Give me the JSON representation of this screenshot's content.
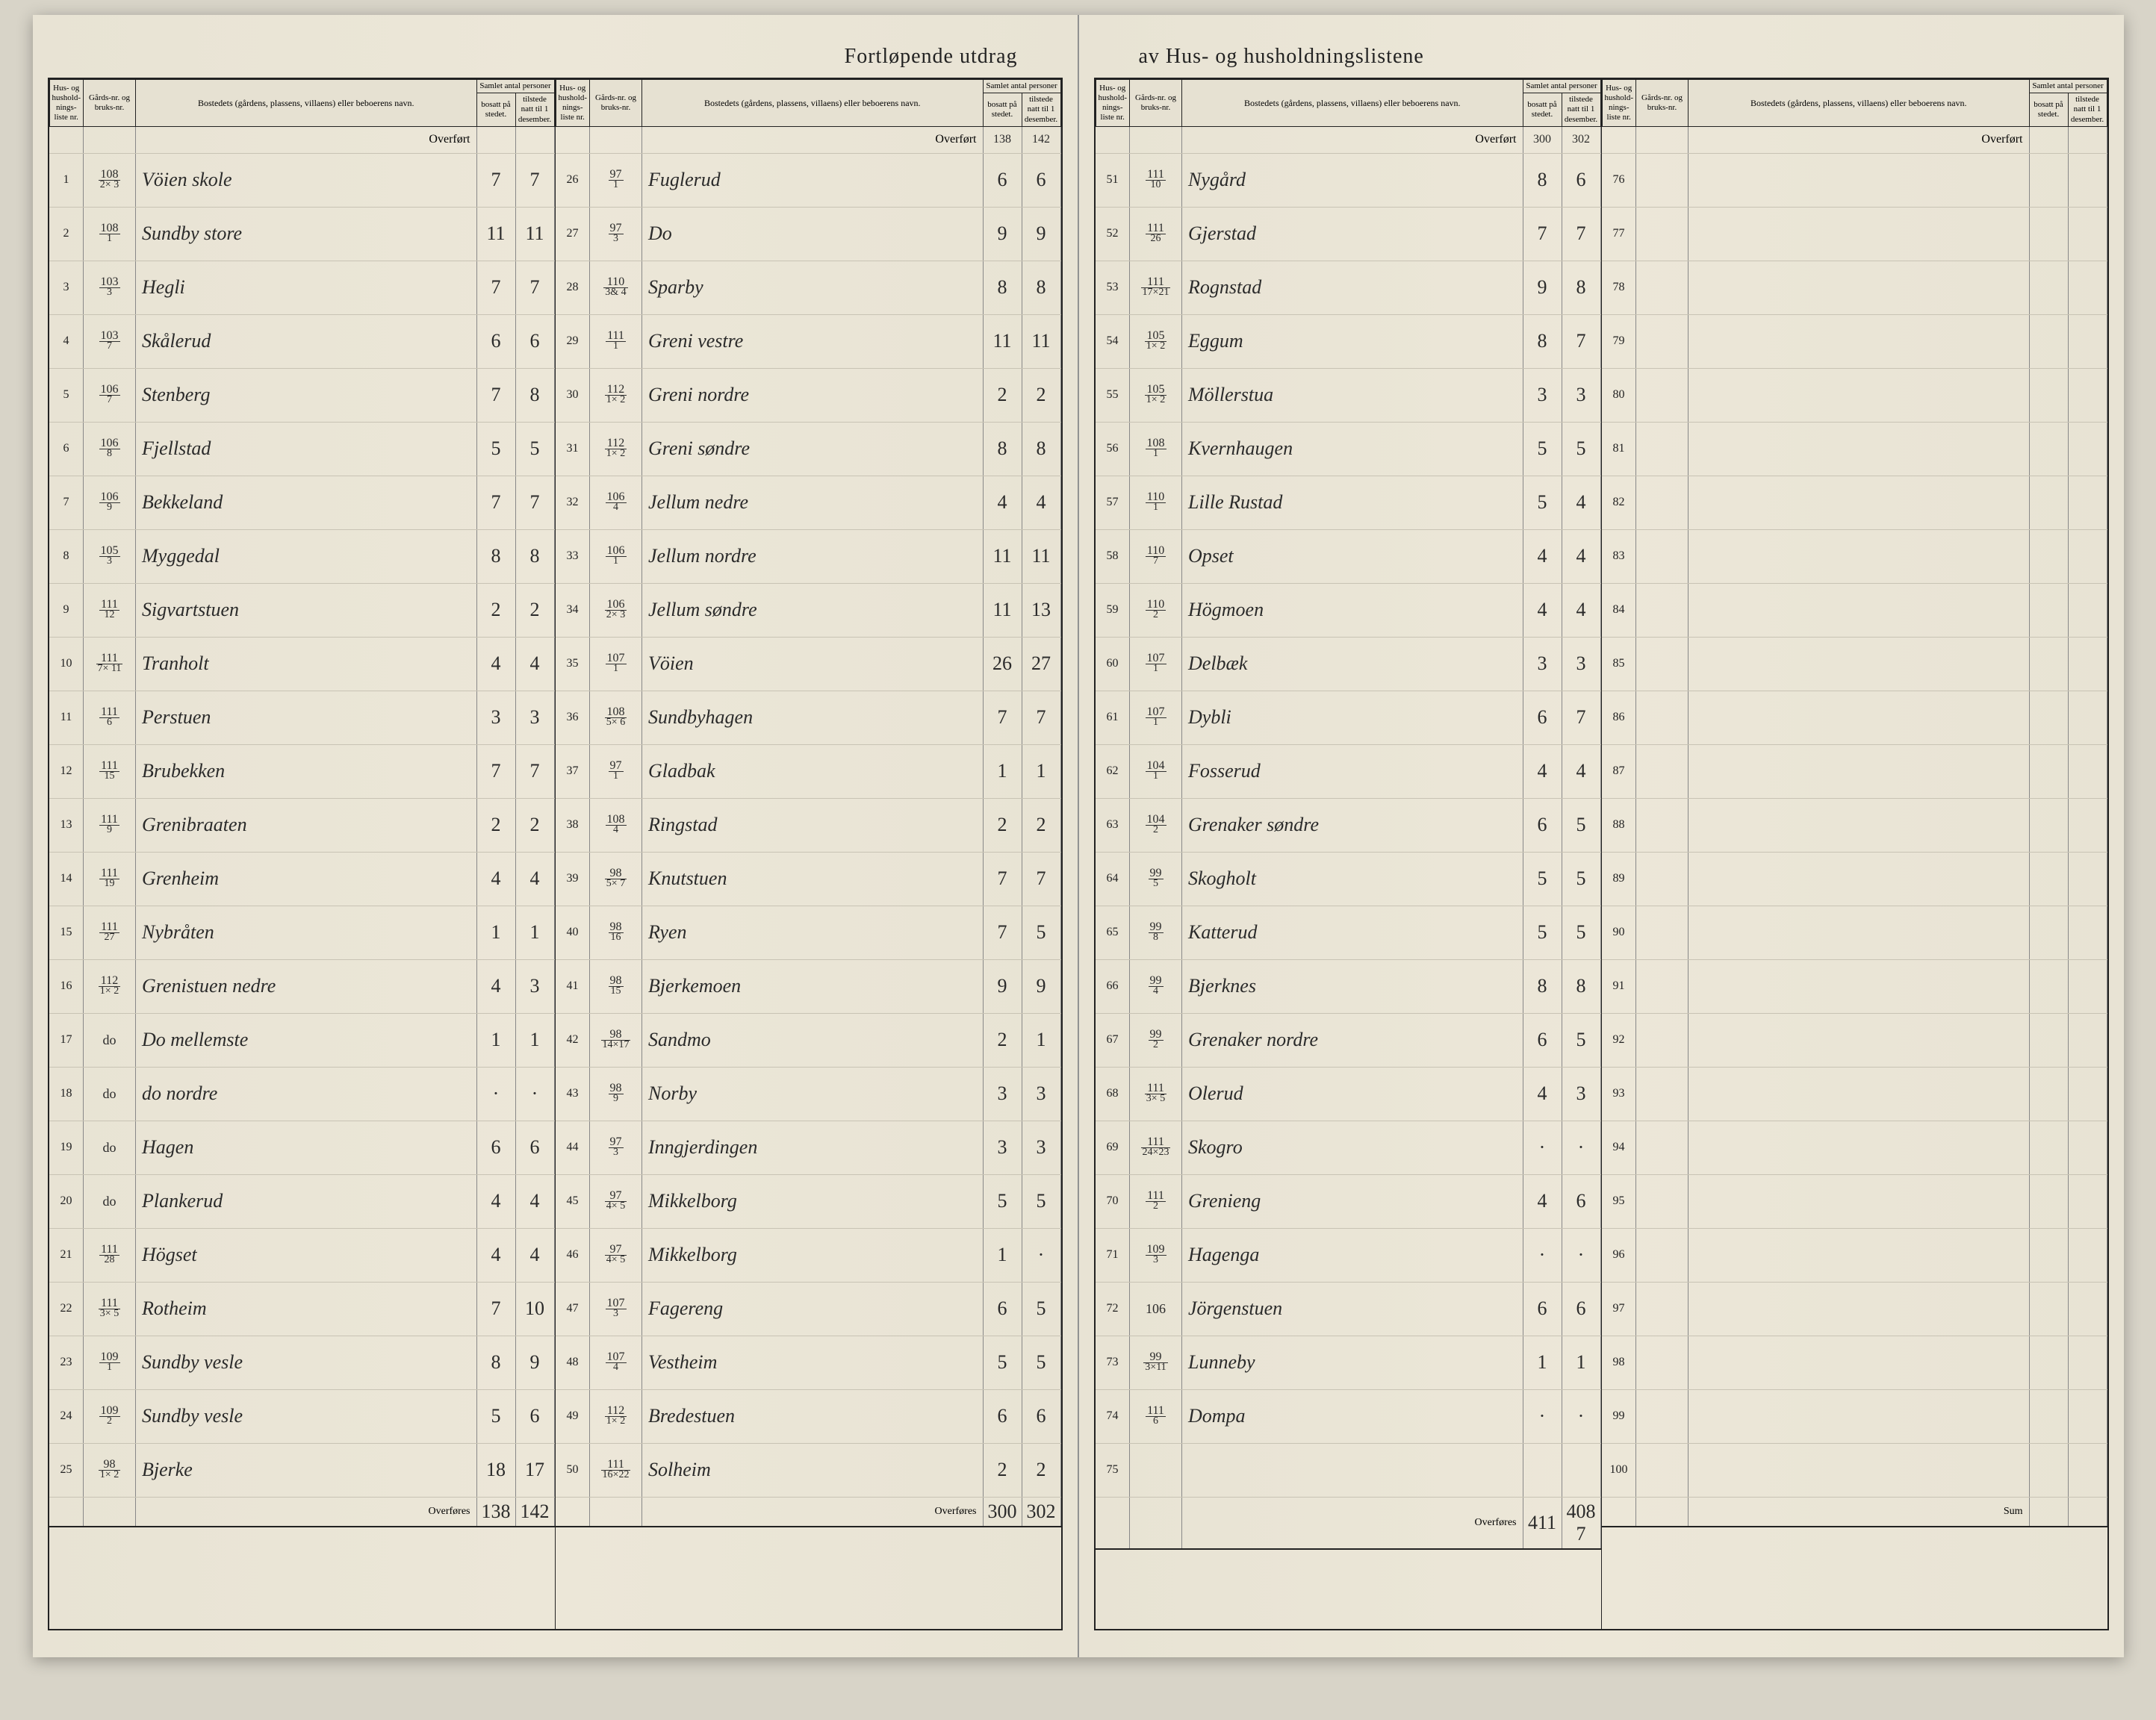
{
  "title_left": "Fortløpende utdrag",
  "title_right": "av Hus- og husholdningslistene",
  "headers": {
    "hus": "Hus- og hushold-nings-liste nr.",
    "gard": "Gårds-nr. og bruks-nr.",
    "bosted": "Bostedets (gårdens, plassens, villaens) eller beboerens navn.",
    "samlet": "Samlet antal personer",
    "bosatt": "bosatt på stedet.",
    "tilstede": "tilstede natt til 1 desember."
  },
  "overfort": "Overført",
  "overfores": "Overføres",
  "sum": "Sum",
  "columns": [
    {
      "overfort_b": "",
      "overfort_t": "",
      "rows": [
        {
          "i": "1",
          "g": "108",
          "gb": "2× 3",
          "n": "Vöien skole",
          "b": "7",
          "t": "7"
        },
        {
          "i": "2",
          "g": "108",
          "gb": "1",
          "n": "Sundby store",
          "b": "11",
          "t": "11"
        },
        {
          "i": "3",
          "g": "103",
          "gb": "3",
          "n": "Hegli",
          "b": "7",
          "t": "7"
        },
        {
          "i": "4",
          "g": "103",
          "gb": "7",
          "n": "Skålerud",
          "b": "6",
          "t": "6"
        },
        {
          "i": "5",
          "g": "106",
          "gb": "7",
          "n": "Stenberg",
          "b": "7",
          "t": "8"
        },
        {
          "i": "6",
          "g": "106",
          "gb": "8",
          "n": "Fjellstad",
          "b": "5",
          "t": "5"
        },
        {
          "i": "7",
          "g": "106",
          "gb": "9",
          "n": "Bekkeland",
          "b": "7",
          "t": "7"
        },
        {
          "i": "8",
          "g": "105",
          "gb": "3",
          "n": "Myggedal",
          "b": "8",
          "t": "8"
        },
        {
          "i": "9",
          "g": "111",
          "gb": "12",
          "n": "Sigvartstuen",
          "b": "2",
          "t": "2"
        },
        {
          "i": "10",
          "g": "111",
          "gb": "7× 11",
          "n": "Tranholt",
          "b": "4",
          "t": "4"
        },
        {
          "i": "11",
          "g": "111",
          "gb": "6",
          "n": "Perstuen",
          "b": "3",
          "t": "3"
        },
        {
          "i": "12",
          "g": "111",
          "gb": "15",
          "n": "Brubekken",
          "b": "7",
          "t": "7"
        },
        {
          "i": "13",
          "g": "111",
          "gb": "9",
          "n": "Grenibraaten",
          "b": "2",
          "t": "2"
        },
        {
          "i": "14",
          "g": "111",
          "gb": "19",
          "n": "Grenheim",
          "b": "4",
          "t": "4"
        },
        {
          "i": "15",
          "g": "111",
          "gb": "27",
          "n": "Nybråten",
          "b": "1",
          "t": "1"
        },
        {
          "i": "16",
          "g": "112",
          "gb": "1× 2",
          "n": "Grenistuen nedre",
          "b": "4",
          "t": "3"
        },
        {
          "i": "17",
          "g": "do",
          "gb": "",
          "n": "Do   mellemste",
          "b": "1",
          "t": "1"
        },
        {
          "i": "18",
          "g": "do",
          "gb": "",
          "n": "do   nordre",
          "b": "·",
          "t": "·"
        },
        {
          "i": "19",
          "g": "do",
          "gb": "",
          "n": "Hagen",
          "b": "6",
          "t": "6"
        },
        {
          "i": "20",
          "g": "do",
          "gb": "",
          "n": "Plankerud",
          "b": "4",
          "t": "4"
        },
        {
          "i": "21",
          "g": "111",
          "gb": "28",
          "n": "Högset",
          "b": "4",
          "t": "4"
        },
        {
          "i": "22",
          "g": "111",
          "gb": "3× 5",
          "n": "Rotheim",
          "b": "7",
          "t": "10"
        },
        {
          "i": "23",
          "g": "109",
          "gb": "1",
          "n": "Sundby vesle",
          "b": "8",
          "t": "9"
        },
        {
          "i": "24",
          "g": "109",
          "gb": "2",
          "n": "Sundby vesle",
          "b": "5",
          "t": "6"
        },
        {
          "i": "25",
          "g": "98",
          "gb": "1× 2",
          "n": "Bjerke",
          "b": "18",
          "t": "17"
        }
      ],
      "overfores_b": "138",
      "overfores_t": "142"
    },
    {
      "overfort_b": "138",
      "overfort_t": "142",
      "rows": [
        {
          "i": "26",
          "g": "97",
          "gb": "1",
          "n": "Fuglerud",
          "b": "6",
          "t": "6"
        },
        {
          "i": "27",
          "g": "97",
          "gb": "3",
          "n": "Do",
          "b": "9",
          "t": "9"
        },
        {
          "i": "28",
          "g": "110",
          "gb": "3& 4",
          "n": "Sparby",
          "b": "8",
          "t": "8"
        },
        {
          "i": "29",
          "g": "111",
          "gb": "1",
          "n": "Greni vestre",
          "b": "11",
          "t": "11"
        },
        {
          "i": "30",
          "g": "112",
          "gb": "1× 2",
          "n": "Greni nordre",
          "b": "2",
          "t": "2"
        },
        {
          "i": "31",
          "g": "112",
          "gb": "1× 2",
          "n": "Greni søndre",
          "b": "8",
          "t": "8"
        },
        {
          "i": "32",
          "g": "106",
          "gb": "4",
          "n": "Jellum nedre",
          "b": "4",
          "t": "4"
        },
        {
          "i": "33",
          "g": "106",
          "gb": "1",
          "n": "Jellum nordre",
          "b": "11",
          "t": "11"
        },
        {
          "i": "34",
          "g": "106",
          "gb": "2× 3",
          "n": "Jellum søndre",
          "b": "11",
          "t": "13"
        },
        {
          "i": "35",
          "g": "107",
          "gb": "1",
          "n": "Vöien",
          "b": "26",
          "t": "27"
        },
        {
          "i": "36",
          "g": "108",
          "gb": "5× 6",
          "n": "Sundbyhagen",
          "b": "7",
          "t": "7"
        },
        {
          "i": "37",
          "g": "97",
          "gb": "1",
          "n": "Gladbak",
          "b": "1",
          "t": "1"
        },
        {
          "i": "38",
          "g": "108",
          "gb": "4",
          "n": "Ringstad",
          "b": "2",
          "t": "2"
        },
        {
          "i": "39",
          "g": "98",
          "gb": "5× 7",
          "n": "Knutstuen",
          "b": "7",
          "t": "7"
        },
        {
          "i": "40",
          "g": "98",
          "gb": "16",
          "n": "Ryen",
          "b": "7",
          "t": "5"
        },
        {
          "i": "41",
          "g": "98",
          "gb": "15",
          "n": "Bjerkemoen",
          "b": "9",
          "t": "9"
        },
        {
          "i": "42",
          "g": "98",
          "gb": "14×17",
          "n": "Sandmo",
          "b": "2",
          "t": "1"
        },
        {
          "i": "43",
          "g": "98",
          "gb": "9",
          "n": "Norby",
          "b": "3",
          "t": "3"
        },
        {
          "i": "44",
          "g": "97",
          "gb": "3",
          "n": "Inngjerdingen",
          "b": "3",
          "t": "3"
        },
        {
          "i": "45",
          "g": "97",
          "gb": "4× 5",
          "n": "Mikkelborg",
          "b": "5",
          "t": "5"
        },
        {
          "i": "46",
          "g": "97",
          "gb": "4× 5",
          "n": "Mikkelborg",
          "b": "1",
          "t": "·"
        },
        {
          "i": "47",
          "g": "107",
          "gb": "3",
          "n": "Fagereng",
          "b": "6",
          "t": "5"
        },
        {
          "i": "48",
          "g": "107",
          "gb": "4",
          "n": "Vestheim",
          "b": "5",
          "t": "5"
        },
        {
          "i": "49",
          "g": "112",
          "gb": "1× 2",
          "n": "Bredestuen",
          "b": "6",
          "t": "6"
        },
        {
          "i": "50",
          "g": "111",
          "gb": "16×22",
          "n": "Solheim",
          "b": "2",
          "t": "2"
        }
      ],
      "overfores_b": "300",
      "overfores_t": "302"
    },
    {
      "overfort_b": "300",
      "overfort_t": "302",
      "rows": [
        {
          "i": "51",
          "g": "111",
          "gb": "10",
          "n": "Nygård",
          "b": "8",
          "t": "6"
        },
        {
          "i": "52",
          "g": "111",
          "gb": "26",
          "n": "Gjerstad",
          "b": "7",
          "t": "7"
        },
        {
          "i": "53",
          "g": "111",
          "gb": "17×21",
          "n": "Rognstad",
          "b": "9",
          "t": "8"
        },
        {
          "i": "54",
          "g": "105",
          "gb": "1× 2",
          "n": "Eggum",
          "b": "8",
          "t": "7"
        },
        {
          "i": "55",
          "g": "105",
          "gb": "1× 2",
          "n": "Möllerstua",
          "b": "3",
          "t": "3"
        },
        {
          "i": "56",
          "g": "108",
          "gb": "1",
          "n": "Kvernhaugen",
          "b": "5",
          "t": "5"
        },
        {
          "i": "57",
          "g": "110",
          "gb": "1",
          "n": "Lille Rustad",
          "b": "5",
          "t": "4"
        },
        {
          "i": "58",
          "g": "110",
          "gb": "7",
          "n": "Opset",
          "b": "4",
          "t": "4"
        },
        {
          "i": "59",
          "g": "110",
          "gb": "2",
          "n": "Högmoen",
          "b": "4",
          "t": "4"
        },
        {
          "i": "60",
          "g": "107",
          "gb": "1",
          "n": "Delbæk",
          "b": "3",
          "t": "3"
        },
        {
          "i": "61",
          "g": "107",
          "gb": "1",
          "n": "Dybli",
          "b": "6",
          "t": "7"
        },
        {
          "i": "62",
          "g": "104",
          "gb": "1",
          "n": "Fosserud",
          "b": "4",
          "t": "4"
        },
        {
          "i": "63",
          "g": "104",
          "gb": "2",
          "n": "Grenaker søndre",
          "b": "6",
          "t": "5"
        },
        {
          "i": "64",
          "g": "99",
          "gb": "5",
          "n": "Skogholt",
          "b": "5",
          "t": "5"
        },
        {
          "i": "65",
          "g": "99",
          "gb": "8",
          "n": "Katterud",
          "b": "5",
          "t": "5"
        },
        {
          "i": "66",
          "g": "99",
          "gb": "4",
          "n": "Bjerknes",
          "b": "8",
          "t": "8"
        },
        {
          "i": "67",
          "g": "99",
          "gb": "2",
          "n": "Grenaker nordre",
          "b": "6",
          "t": "5"
        },
        {
          "i": "68",
          "g": "111",
          "gb": "3× 5",
          "n": "Olerud",
          "b": "4",
          "t": "3"
        },
        {
          "i": "69",
          "g": "111",
          "gb": "24×23",
          "n": "Skogro",
          "b": "·",
          "t": "·"
        },
        {
          "i": "70",
          "g": "111",
          "gb": "2",
          "n": "Grenieng",
          "b": "4",
          "t": "6"
        },
        {
          "i": "71",
          "g": "109",
          "gb": "3",
          "n": "Hagenga",
          "b": "·",
          "t": "·"
        },
        {
          "i": "72",
          "g": "106",
          "gb": "",
          "n": "Jörgenstuen",
          "b": "6",
          "t": "6"
        },
        {
          "i": "73",
          "g": "99",
          "gb": "3×11",
          "n": "Lunneby",
          "b": "1",
          "t": "1"
        },
        {
          "i": "74",
          "g": "111",
          "gb": "6",
          "n": "Dompa",
          "b": "·",
          "t": "·"
        },
        {
          "i": "75",
          "g": "",
          "gb": "",
          "n": "",
          "b": "",
          "t": ""
        }
      ],
      "overfores_b": "411",
      "overfores_t": "408 7"
    },
    {
      "overfort_b": "",
      "overfort_t": "",
      "rows": [
        {
          "i": "76",
          "g": "",
          "gb": "",
          "n": "",
          "b": "",
          "t": ""
        },
        {
          "i": "77",
          "g": "",
          "gb": "",
          "n": "",
          "b": "",
          "t": ""
        },
        {
          "i": "78",
          "g": "",
          "gb": "",
          "n": "",
          "b": "",
          "t": ""
        },
        {
          "i": "79",
          "g": "",
          "gb": "",
          "n": "",
          "b": "",
          "t": ""
        },
        {
          "i": "80",
          "g": "",
          "gb": "",
          "n": "",
          "b": "",
          "t": ""
        },
        {
          "i": "81",
          "g": "",
          "gb": "",
          "n": "",
          "b": "",
          "t": ""
        },
        {
          "i": "82",
          "g": "",
          "gb": "",
          "n": "",
          "b": "",
          "t": ""
        },
        {
          "i": "83",
          "g": "",
          "gb": "",
          "n": "",
          "b": "",
          "t": ""
        },
        {
          "i": "84",
          "g": "",
          "gb": "",
          "n": "",
          "b": "",
          "t": ""
        },
        {
          "i": "85",
          "g": "",
          "gb": "",
          "n": "",
          "b": "",
          "t": ""
        },
        {
          "i": "86",
          "g": "",
          "gb": "",
          "n": "",
          "b": "",
          "t": ""
        },
        {
          "i": "87",
          "g": "",
          "gb": "",
          "n": "",
          "b": "",
          "t": ""
        },
        {
          "i": "88",
          "g": "",
          "gb": "",
          "n": "",
          "b": "",
          "t": ""
        },
        {
          "i": "89",
          "g": "",
          "gb": "",
          "n": "",
          "b": "",
          "t": ""
        },
        {
          "i": "90",
          "g": "",
          "gb": "",
          "n": "",
          "b": "",
          "t": ""
        },
        {
          "i": "91",
          "g": "",
          "gb": "",
          "n": "",
          "b": "",
          "t": ""
        },
        {
          "i": "92",
          "g": "",
          "gb": "",
          "n": "",
          "b": "",
          "t": ""
        },
        {
          "i": "93",
          "g": "",
          "gb": "",
          "n": "",
          "b": "",
          "t": ""
        },
        {
          "i": "94",
          "g": "",
          "gb": "",
          "n": "",
          "b": "",
          "t": ""
        },
        {
          "i": "95",
          "g": "",
          "gb": "",
          "n": "",
          "b": "",
          "t": ""
        },
        {
          "i": "96",
          "g": "",
          "gb": "",
          "n": "",
          "b": "",
          "t": ""
        },
        {
          "i": "97",
          "g": "",
          "gb": "",
          "n": "",
          "b": "",
          "t": ""
        },
        {
          "i": "98",
          "g": "",
          "gb": "",
          "n": "",
          "b": "",
          "t": ""
        },
        {
          "i": "99",
          "g": "",
          "gb": "",
          "n": "",
          "b": "",
          "t": ""
        },
        {
          "i": "100",
          "g": "",
          "gb": "",
          "n": "",
          "b": "",
          "t": ""
        }
      ],
      "overfores_b": "",
      "overfores_t": "",
      "is_sum": true
    }
  ]
}
